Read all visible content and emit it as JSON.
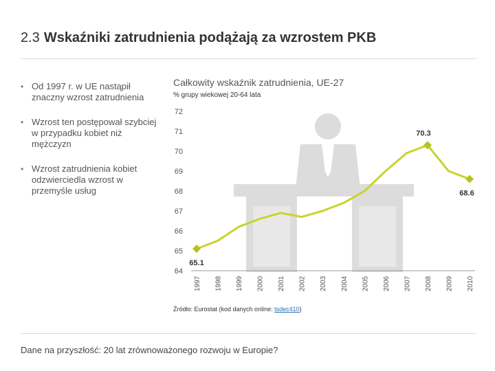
{
  "slide": {
    "number": "2.3",
    "title": "Wskaźniki zatrudnienia podążają za wzrostem PKB",
    "bullets": [
      "Od 1997 r. w UE nastąpił znaczny wzrost zatrudnienia",
      "Wzrost ten postępował szybciej w przypadku kobiet niż mężczyzn",
      "Wzrost zatrudnienia kobiet odzwierciedla wzrost w przemyśle usług"
    ],
    "source_prefix": "Źródło: Eurostat (kod danych online: ",
    "source_link": "tsdec410",
    "source_suffix": ")",
    "footer": "Dane na przyszłość: 20 lat zrównoważonego rozwoju w Europie?"
  },
  "colors": {
    "line": "#c8d42a",
    "marker": "#b5c31e",
    "grid_text": "#555555",
    "illustration": "#dcdcdc",
    "axis": "#999999"
  },
  "chart_data": {
    "type": "line",
    "title": "Całkowity wskaźnik zatrudnienia, UE-27",
    "subtitle": "% grupy wiekowej 20-64 lata",
    "xlabel": "",
    "ylabel": "",
    "x": [
      "1997",
      "1998",
      "1999",
      "2000",
      "2001",
      "2002",
      "2003",
      "2004",
      "2005",
      "2006",
      "2007",
      "2008",
      "2009",
      "2010"
    ],
    "series": [
      {
        "values": [
          65.1,
          65.5,
          66.2,
          66.6,
          66.9,
          66.7,
          67.0,
          67.4,
          68.0,
          69.0,
          69.9,
          70.3,
          69.0,
          68.6
        ]
      }
    ],
    "ylim": [
      64,
      72
    ],
    "yticks": [
      64,
      65,
      66,
      67,
      68,
      69,
      70,
      71,
      72
    ],
    "highlighted": [
      {
        "x": "1997",
        "value": 65.1,
        "label": "65.1"
      },
      {
        "x": "2008",
        "value": 70.3,
        "label": "70.3"
      },
      {
        "x": "2010",
        "value": 68.6,
        "label": "68.6"
      }
    ],
    "grid": false,
    "legend": "none",
    "background_illustration": "person-at-desk-icon"
  }
}
